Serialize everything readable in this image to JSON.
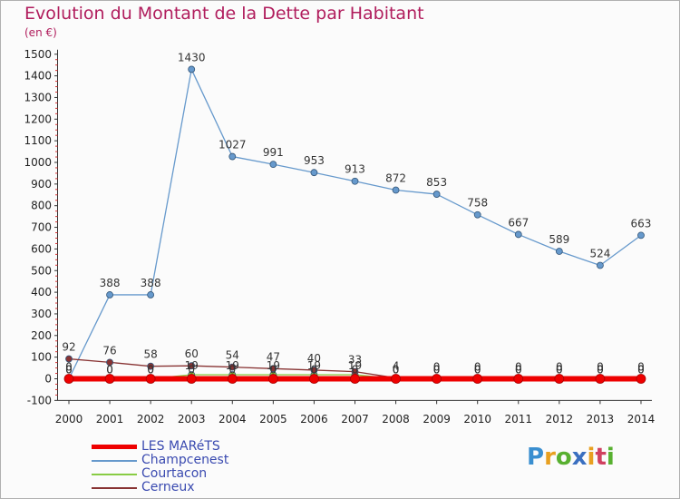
{
  "title": "Evolution du Montant de la Dette par Habitant",
  "subtitle": "(en €)",
  "logo": {
    "text": "Proxiti",
    "letters": [
      "P",
      "r",
      "o",
      "x",
      "i",
      "t",
      "i"
    ],
    "colors": [
      "#3a8fd0",
      "#e8a020",
      "#58b030",
      "#3a6fc0",
      "#e8a020",
      "#d04060",
      "#58b030"
    ]
  },
  "chart_data": {
    "type": "line",
    "title": "Evolution du Montant de la Dette par Habitant",
    "subtitle": "(en €)",
    "ylim": [
      -100,
      1500
    ],
    "yticks": [
      -100,
      0,
      100,
      200,
      300,
      400,
      500,
      600,
      700,
      800,
      900,
      1000,
      1100,
      1200,
      1300,
      1400,
      1500
    ],
    "x": [
      "2000",
      "2001",
      "2002",
      "2003",
      "2004",
      "2005",
      "2006",
      "2007",
      "2008",
      "2009",
      "2010",
      "2011",
      "2012",
      "2013",
      "2014"
    ],
    "grid": false,
    "legend_position": "bottom-left",
    "series": [
      {
        "name": "LES MARéTS",
        "color": "#ee0000",
        "values": [
          0,
          0,
          0,
          0,
          0,
          0,
          0,
          0,
          0,
          0,
          0,
          0,
          0,
          0,
          0
        ],
        "labels": [
          "0",
          "0",
          "0",
          "0",
          "0",
          "0",
          "0",
          "0",
          "0",
          "0",
          "0",
          "0",
          "0",
          "0",
          "0"
        ]
      },
      {
        "name": "Champcenest",
        "color": "#6699cc",
        "values": [
          0,
          388,
          388,
          1430,
          1027,
          991,
          953,
          913,
          872,
          853,
          758,
          667,
          589,
          524,
          663
        ],
        "labels": [
          "0",
          "388",
          "388",
          "1430",
          "1027",
          "991",
          "953",
          "913",
          "872",
          "853",
          "758",
          "667",
          "589",
          "524",
          "663"
        ]
      },
      {
        "name": "Courtacon",
        "color": "#88cc44",
        "values": [
          0,
          0,
          0,
          19,
          19,
          19,
          19,
          19,
          0,
          0,
          0,
          0,
          0,
          0,
          0
        ],
        "labels": [
          "0",
          "0",
          "0",
          "19",
          "19",
          "19",
          "19",
          "19",
          "0",
          "0",
          "0",
          "0",
          "0",
          "0",
          "0"
        ]
      },
      {
        "name": "Cerneux",
        "color": "#883333",
        "values": [
          92,
          76,
          58,
          60,
          54,
          47,
          40,
          33,
          4,
          0,
          0,
          0,
          0,
          0,
          0
        ],
        "labels": [
          "92",
          "76",
          "58",
          "60",
          "54",
          "47",
          "40",
          "33",
          "4",
          "0",
          "0",
          "0",
          "0",
          "0",
          "0"
        ]
      }
    ]
  }
}
